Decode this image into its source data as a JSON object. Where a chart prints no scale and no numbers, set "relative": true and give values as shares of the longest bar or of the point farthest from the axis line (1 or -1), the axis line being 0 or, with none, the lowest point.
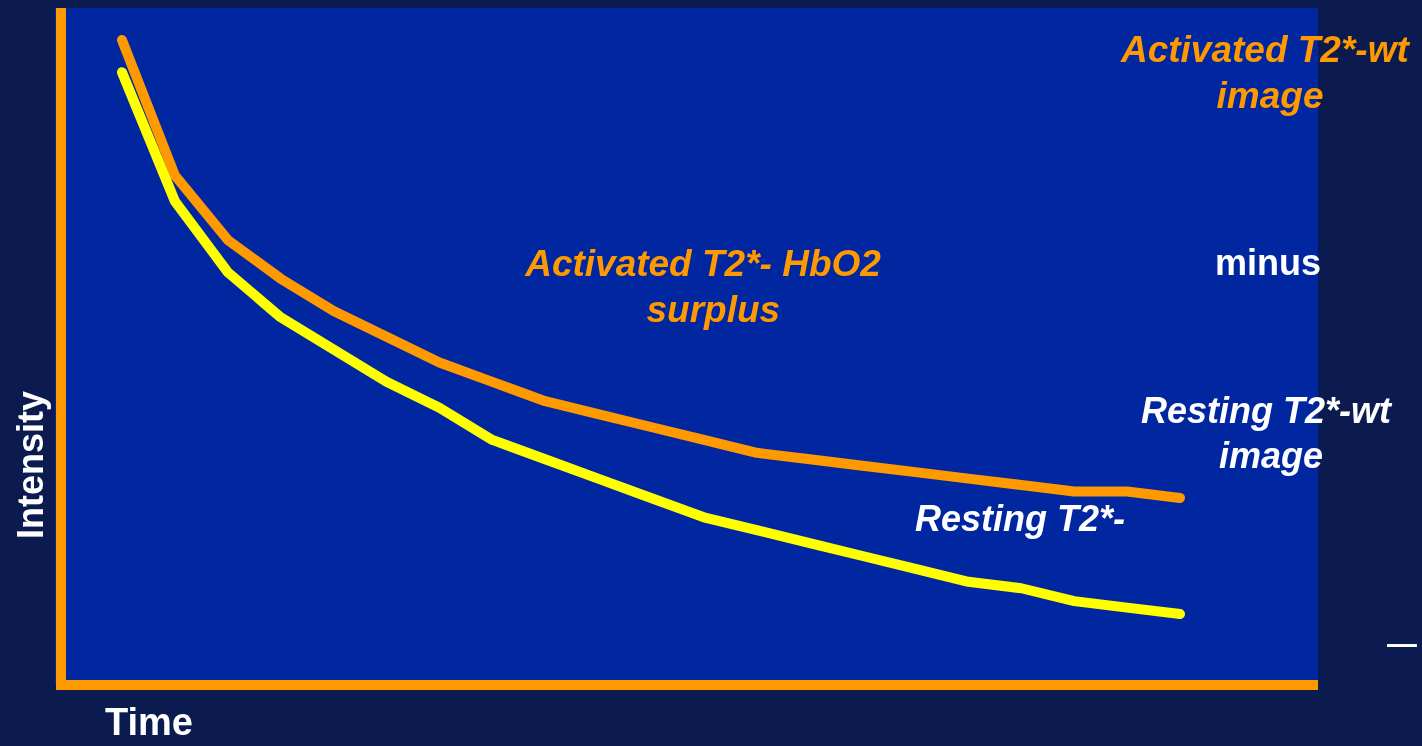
{
  "chart_data": {
    "type": "line",
    "relative": true,
    "xlabel": "Time",
    "ylabel": "Intensity",
    "categories": [
      null,
      null,
      null,
      null,
      null,
      null,
      null,
      null,
      null,
      null,
      null,
      null,
      null,
      null,
      null,
      null,
      null,
      null,
      null,
      null,
      null
    ],
    "series": [
      {
        "color": "#ff9900",
        "values": [
          1,
          0.79,
          0.69,
          0.63,
          0.58,
          0.54,
          0.5,
          0.47,
          0.44,
          0.42,
          0.4,
          0.38,
          0.36,
          0.35,
          0.34,
          0.33,
          0.32,
          0.31,
          0.3,
          0.3,
          0.29
        ]
      },
      {
        "color": "#ffff00",
        "values": [
          0.95,
          0.75,
          0.64,
          0.57,
          0.52,
          0.47,
          0.43,
          0.38,
          0.35,
          0.32,
          0.29,
          0.26,
          0.24,
          0.22,
          0.2,
          0.18,
          0.16,
          0.15,
          0.13,
          0.12,
          0.11
        ]
      }
    ],
    "annotations": [
      "Activated T2*-wt image",
      "minus",
      "Resting T2*-wt image",
      "Activated T2*- HbO2  surplus",
      "Resting T2*-",
      "—"
    ],
    "grid": false,
    "line_style": "solid"
  }
}
